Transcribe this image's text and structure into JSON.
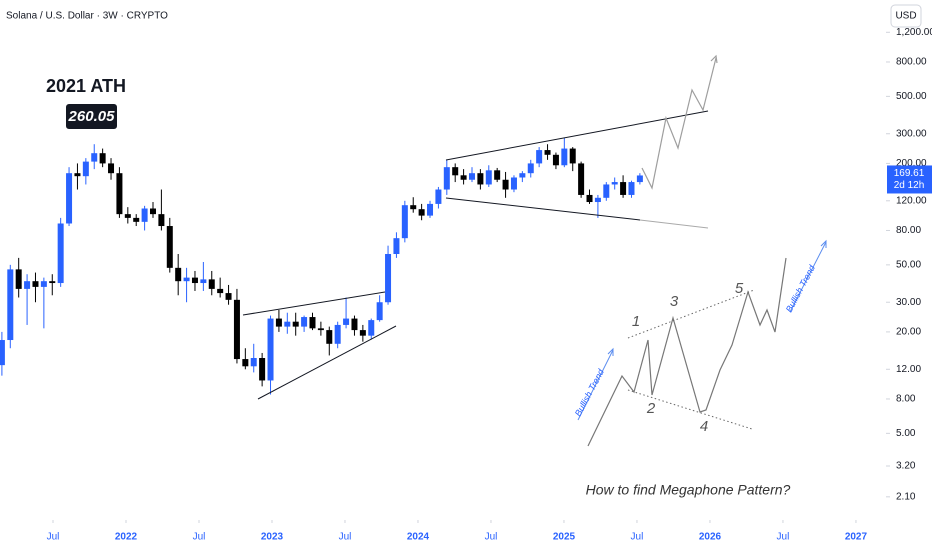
{
  "chart_data": {
    "type": "candlestick",
    "title": "Solana / U.S. Dollar · 3W · CRYPTO",
    "currency": "USD",
    "countdown": "2d 12h",
    "up_color": "#2962ff",
    "down_color": "#000000",
    "log_scale": true,
    "grid": false,
    "x": [
      2021.15,
      2021.2075,
      2021.265,
      2021.3225,
      2021.38,
      2021.4375,
      2021.495,
      2021.5525,
      2021.61,
      2021.6675,
      2021.725,
      2021.7825,
      2021.84,
      2021.8975,
      2021.955,
      2022.0125,
      2022.07,
      2022.1275,
      2022.185,
      2022.2425,
      2022.3,
      2022.3575,
      2022.415,
      2022.4725,
      2022.53,
      2022.5875,
      2022.645,
      2022.7025,
      2022.76,
      2022.8175,
      2022.875,
      2022.9325,
      2022.99,
      2023.0475,
      2023.105,
      2023.1625,
      2023.22,
      2023.2775,
      2023.335,
      2023.3925,
      2023.45,
      2023.5075,
      2023.565,
      2023.6225,
      2023.68,
      2023.7375,
      2023.795,
      2023.8525,
      2023.91,
      2023.9675,
      2024.025,
      2024.0825,
      2024.14,
      2024.1975,
      2024.255,
      2024.3125,
      2024.37,
      2024.4275,
      2024.485,
      2024.5425,
      2024.6,
      2024.6575,
      2024.715,
      2024.7725,
      2024.83,
      2024.8875,
      2024.945,
      2025.0025,
      2025.06,
      2025.1175,
      2025.175,
      2025.2325,
      2025.29,
      2025.3475,
      2025.405,
      2025.4625,
      2025.52
    ],
    "open": [
      12.7,
      17.9,
      47,
      36,
      40,
      37,
      40,
      39,
      88,
      175,
      168,
      205,
      230,
      200,
      175,
      100,
      95,
      90,
      108,
      100,
      85,
      48,
      40,
      42,
      39,
      41,
      36,
      34,
      31,
      13.8,
      12.5,
      14,
      10.3,
      24,
      21.5,
      23,
      21.5,
      24.5,
      21,
      20.5,
      17,
      22,
      24,
      20.5,
      19,
      23.5,
      30,
      58,
      72,
      113,
      107,
      98,
      115,
      140,
      190,
      170,
      160,
      175,
      150,
      182,
      160,
      140,
      165,
      175,
      200,
      240,
      225,
      195,
      245,
      200,
      130,
      118,
      125,
      150,
      155,
      130,
      155
    ],
    "high": [
      20,
      50,
      55,
      44,
      45,
      42,
      44,
      95,
      190,
      200,
      215,
      260.05,
      245,
      215,
      190,
      110,
      100,
      112,
      118,
      140,
      95,
      58,
      48,
      46,
      52,
      46,
      42,
      38,
      36,
      16,
      17,
      15,
      25,
      27,
      26,
      26,
      25,
      26,
      23,
      21.5,
      23,
      32,
      25,
      22,
      24,
      33,
      65,
      78,
      120,
      126,
      115,
      120,
      145,
      210,
      200,
      185,
      190,
      185,
      195,
      188,
      178,
      170,
      180,
      210,
      250,
      260,
      232,
      285,
      250,
      205,
      140,
      130,
      155,
      165,
      170,
      158,
      175
    ],
    "low": [
      11,
      16,
      32,
      22,
      30,
      21,
      33,
      37,
      85,
      140,
      150,
      185,
      190,
      160,
      95,
      88,
      85,
      80,
      95,
      80,
      45,
      33,
      30,
      35,
      35,
      33,
      32,
      29,
      13,
      12,
      11.5,
      9.5,
      8.5,
      20,
      19.5,
      19,
      20,
      20.5,
      19,
      14.5,
      16,
      21,
      19,
      17.5,
      18,
      23,
      29,
      55,
      68,
      102,
      92,
      95,
      108,
      130,
      155,
      150,
      155,
      140,
      145,
      155,
      125,
      135,
      155,
      165,
      190,
      210,
      185,
      190,
      180,
      125,
      115,
      95,
      120,
      140,
      125,
      125,
      150
    ],
    "close": [
      17.9,
      47,
      36,
      40,
      37,
      40,
      39,
      88,
      175,
      168,
      205,
      230,
      200,
      175,
      100,
      95,
      90,
      108,
      100,
      85,
      48,
      40,
      42,
      39,
      41,
      36,
      34,
      31,
      13.8,
      12.5,
      14,
      10.3,
      24,
      21.5,
      23,
      21.5,
      24.5,
      21,
      20.5,
      17,
      22,
      24,
      20.5,
      19,
      23.5,
      30,
      58,
      72,
      113,
      107,
      98,
      115,
      140,
      190,
      170,
      160,
      175,
      150,
      182,
      160,
      140,
      165,
      175,
      200,
      240,
      225,
      195,
      245,
      200,
      130,
      118,
      125,
      150,
      155,
      130,
      155,
      169.61
    ],
    "xlim": [
      2021.137,
      2027.199
    ],
    "xticks": [
      {
        "value": 2021.5,
        "label": "Jul"
      },
      2022,
      {
        "value": 2022.5,
        "label": "Jul"
      },
      2023,
      {
        "value": 2023.5,
        "label": "Jul"
      },
      2024,
      {
        "value": 2024.5,
        "label": "Jul"
      },
      2025,
      {
        "value": 2025.5,
        "label": "Jul"
      },
      2026,
      {
        "value": 2026.5,
        "label": "Jul"
      },
      2027
    ],
    "ylim": [
      1.53,
      1866
    ],
    "yticks": [
      {
        "value": 1200,
        "label": "1,200.00"
      },
      {
        "value": 800,
        "label": "800.00"
      },
      {
        "value": 500,
        "label": "500.00"
      },
      {
        "value": 300,
        "label": "300.00"
      },
      {
        "value": 200,
        "label": "200.00"
      },
      {
        "value": 120,
        "label": "120.00"
      },
      {
        "value": 80,
        "label": "80.00"
      },
      {
        "value": 50,
        "label": "50.00"
      },
      {
        "value": 30,
        "label": "30.00"
      },
      {
        "value": 20,
        "label": "20.00"
      },
      {
        "value": 12,
        "label": "12.00"
      },
      {
        "value": 8,
        "label": "8.00"
      },
      {
        "value": 5,
        "label": "5.00"
      },
      {
        "value": 3.2,
        "label": "3.20"
      },
      {
        "value": 2.1,
        "label": "2.10"
      }
    ],
    "annotations": {
      "ath_label": "2021 ATH",
      "waves": [
        "1",
        "2",
        "3",
        "4",
        "5"
      ],
      "trend_left": "Bullish Trend",
      "trend_right": "Bullish Trend",
      "caption": "How to find Megaphone Pattern?"
    }
  }
}
